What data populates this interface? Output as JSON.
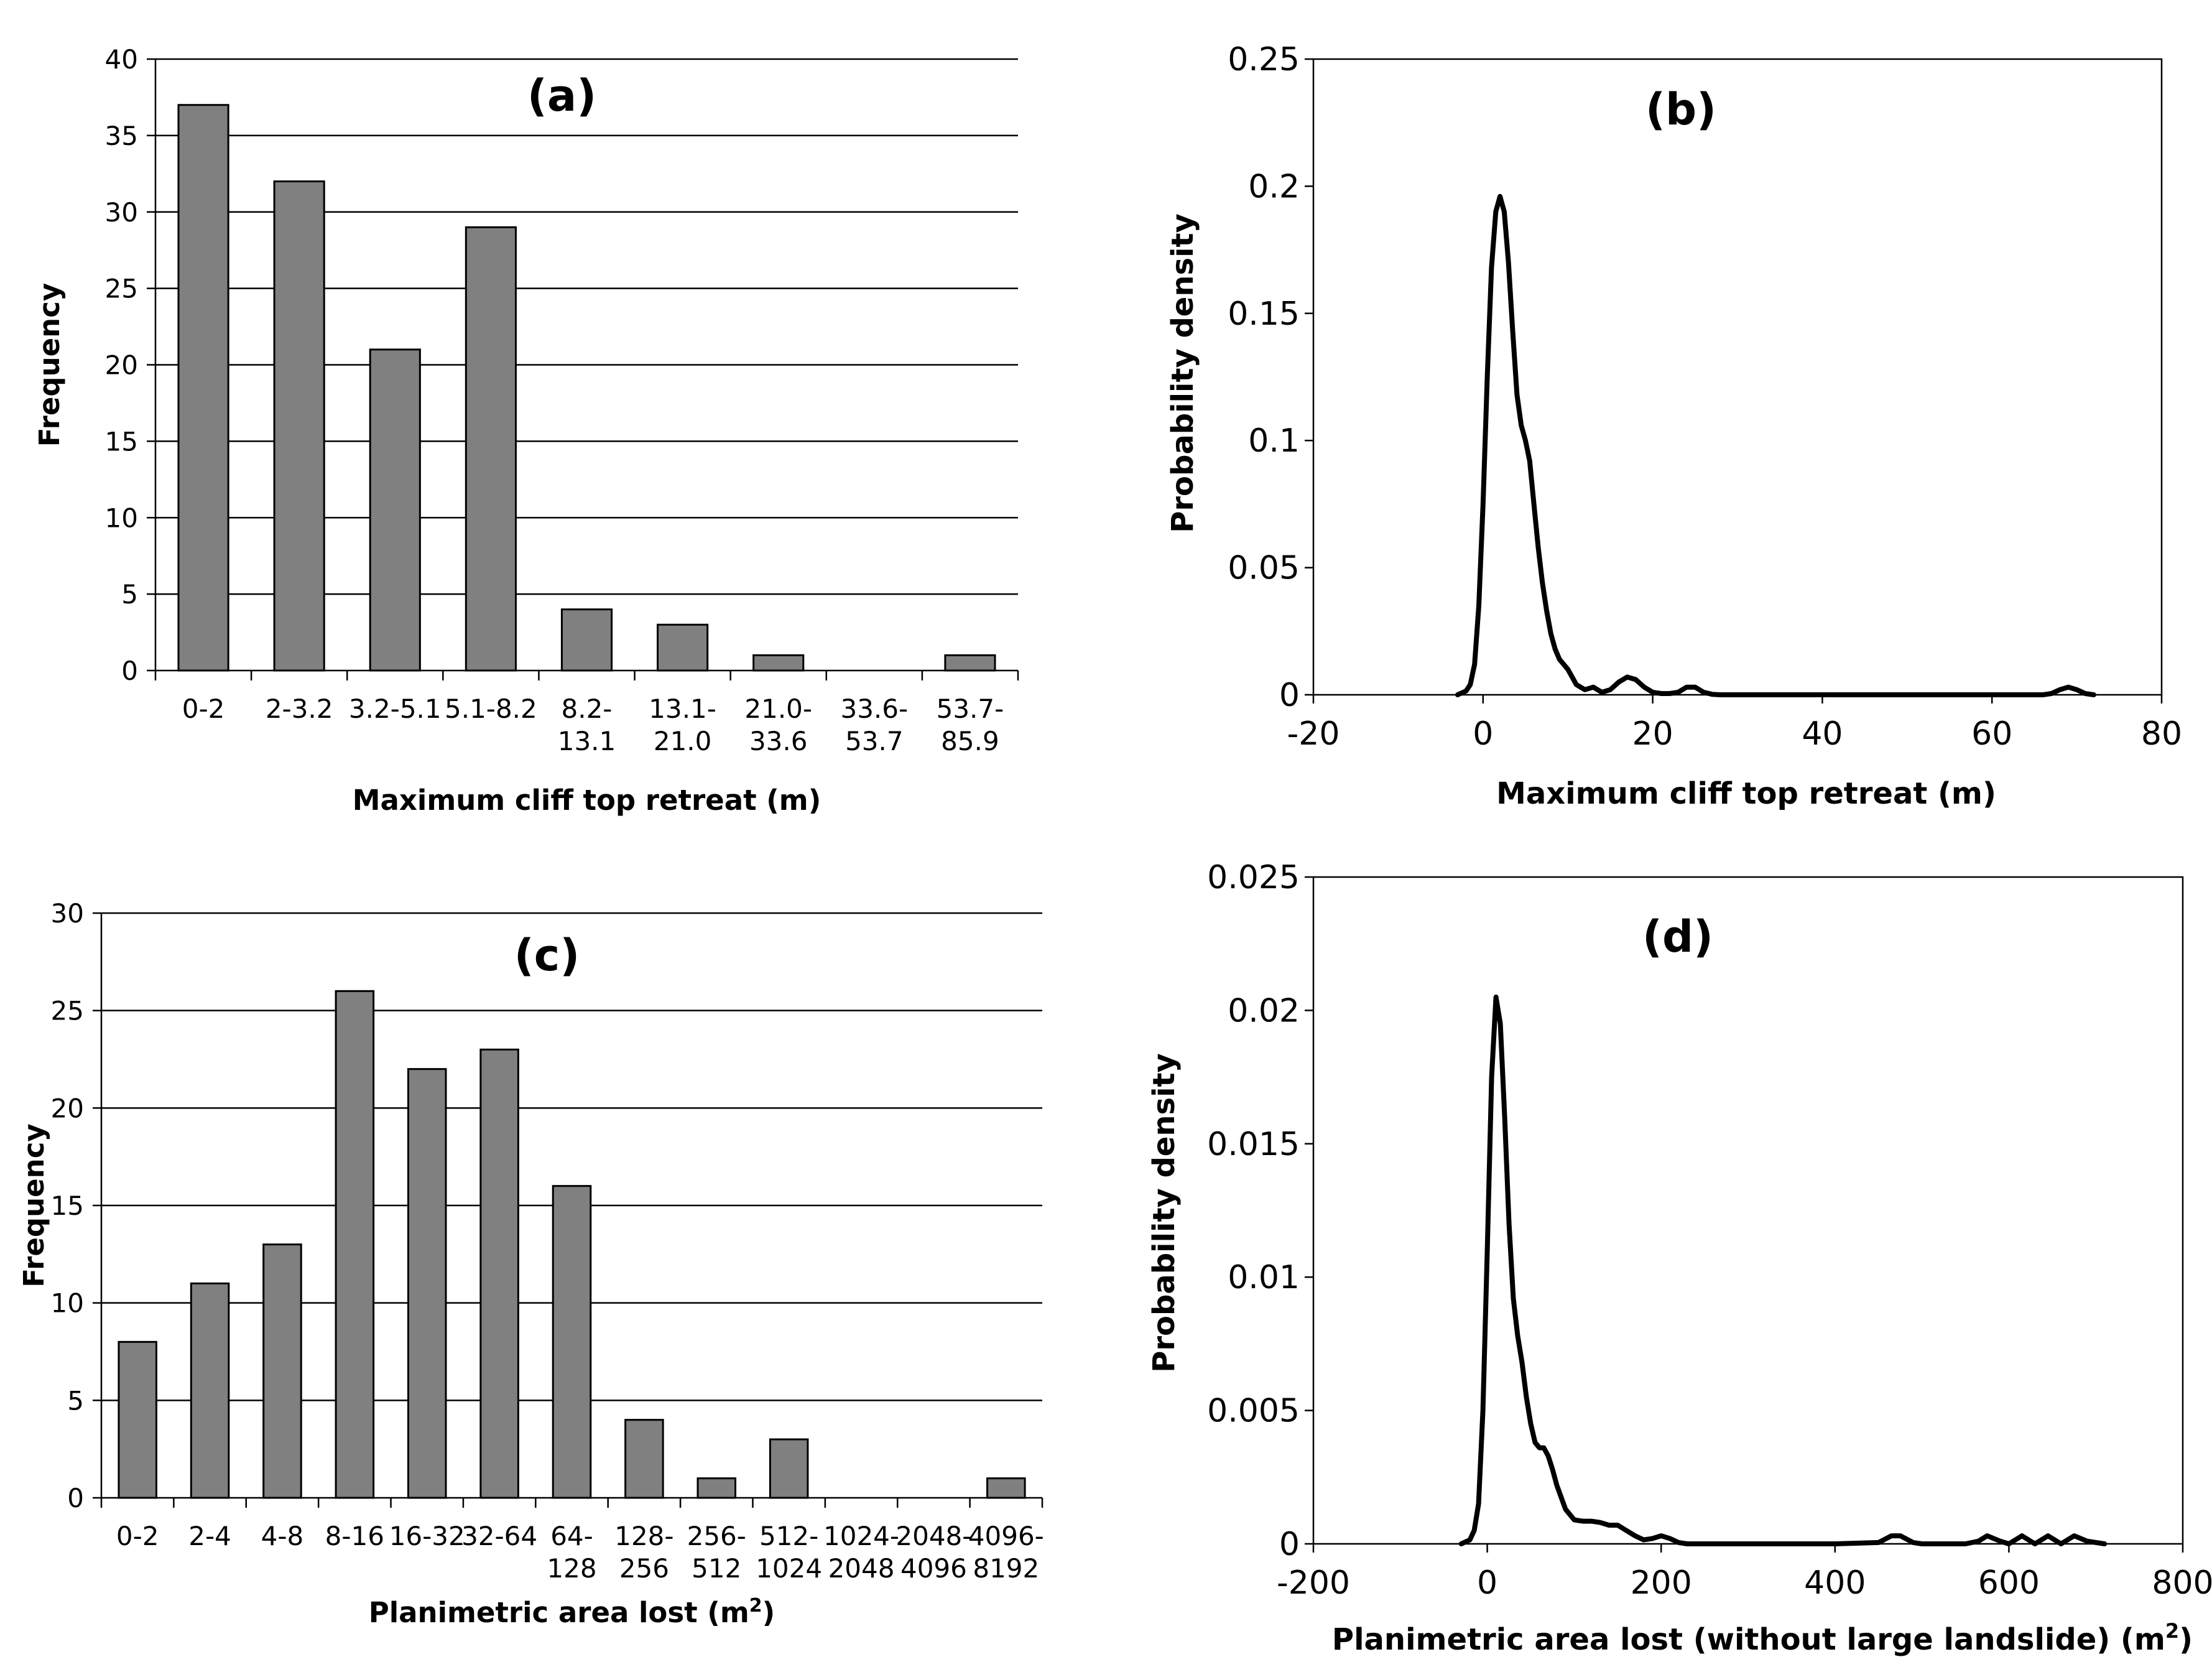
{
  "chart_data": [
    {
      "id": "a",
      "type": "bar",
      "panel_label": "(a)",
      "title": "(a)",
      "xlabel": "Maximum cliff top retreat  (m)",
      "ylabel": "Frequency",
      "categories": [
        [
          "0-2"
        ],
        [
          "2-3.2"
        ],
        [
          "3.2-5.1"
        ],
        [
          "5.1-8.2"
        ],
        [
          "8.2-",
          "13.1"
        ],
        [
          "13.1-",
          "21.0"
        ],
        [
          "21.0-",
          "33.6"
        ],
        [
          "33.6-",
          "53.7"
        ],
        [
          "53.7-",
          "85.9"
        ]
      ],
      "values": [
        37,
        32,
        21,
        29,
        4,
        3,
        1,
        0,
        1
      ],
      "ylim": [
        0,
        40
      ],
      "yticks": [
        0,
        5,
        10,
        15,
        20,
        25,
        30,
        35,
        40
      ],
      "grid": true
    },
    {
      "id": "b",
      "type": "line",
      "panel_label": "(b)",
      "title": "(b)",
      "xlabel": "Maximum cliff top retreat (m)",
      "ylabel": "Probability density",
      "xlim": [
        -20,
        80
      ],
      "ylim": [
        0,
        0.25
      ],
      "xticks": [
        "-20",
        "0",
        "20",
        "40",
        "60",
        "80"
      ],
      "yticks": [
        "0",
        "0.05",
        "0.1",
        "0.15",
        "0.2",
        "0.25"
      ],
      "grid": false,
      "x": [
        -3,
        -2,
        -1.5,
        -1,
        -0.5,
        0,
        0.5,
        1,
        1.5,
        2,
        2.5,
        3,
        3.5,
        4,
        4.5,
        5,
        5.5,
        6,
        6.5,
        7,
        7.5,
        8,
        8.5,
        9,
        9.5,
        10,
        11,
        12,
        13,
        14,
        15,
        16,
        17,
        18,
        19,
        20,
        21,
        22,
        23,
        24,
        25,
        26,
        27,
        28,
        30,
        40,
        50,
        60,
        66,
        67,
        68,
        69,
        70,
        71,
        72
      ],
      "y": [
        0,
        0.0015,
        0.004,
        0.012,
        0.035,
        0.075,
        0.125,
        0.168,
        0.19,
        0.196,
        0.19,
        0.17,
        0.143,
        0.118,
        0.106,
        0.1,
        0.092,
        0.075,
        0.058,
        0.044,
        0.033,
        0.024,
        0.018,
        0.014,
        0.012,
        0.01,
        0.004,
        0.002,
        0.003,
        0.001,
        0.002,
        0.005,
        0.007,
        0.006,
        0.003,
        0.001,
        0.0005,
        0.0005,
        0.001,
        0.003,
        0.003,
        0.001,
        0.0002,
        0,
        0,
        0,
        0,
        0,
        0,
        0.0005,
        0.002,
        0.003,
        0.002,
        0.0005,
        0
      ]
    },
    {
      "id": "c",
      "type": "bar",
      "panel_label": "(c)",
      "title": "(c)",
      "xlabel": "Planimetric area lost (m",
      "xlabel_sup": "2",
      "xlabel_end": ")",
      "ylabel": "Frequency",
      "categories": [
        [
          "0-2"
        ],
        [
          "2-4"
        ],
        [
          "4-8"
        ],
        [
          "8-16"
        ],
        [
          "16-32"
        ],
        [
          "32-64"
        ],
        [
          "64-",
          "128"
        ],
        [
          "128-",
          "256"
        ],
        [
          "256-",
          "512"
        ],
        [
          "512-",
          "1024"
        ],
        [
          "1024-",
          "2048"
        ],
        [
          "2048-",
          "4096"
        ],
        [
          "4096-",
          "8192"
        ]
      ],
      "values": [
        8,
        11,
        13,
        26,
        22,
        23,
        16,
        4,
        1,
        3,
        0,
        0,
        1
      ],
      "ylim": [
        0,
        30
      ],
      "yticks": [
        0,
        5,
        10,
        15,
        20,
        25,
        30
      ],
      "grid": true
    },
    {
      "id": "d",
      "type": "line",
      "panel_label": "(d)",
      "title": "(d)",
      "xlabel": "Planimetric area lost (without large landslide) (m",
      "xlabel_sup": "2",
      "xlabel_end": ")",
      "ylabel": "Probability density",
      "xlim": [
        -200,
        800
      ],
      "ylim": [
        0,
        0.025
      ],
      "xticks": [
        "-200",
        "0",
        "200",
        "400",
        "600",
        "800"
      ],
      "yticks": [
        "0",
        "0.005",
        "0.01",
        "0.015",
        "0.02",
        "0.025"
      ],
      "grid": false,
      "x": [
        -30,
        -20,
        -15,
        -10,
        -5,
        0,
        5,
        10,
        15,
        20,
        25,
        30,
        35,
        40,
        45,
        50,
        55,
        60,
        65,
        70,
        75,
        80,
        90,
        100,
        110,
        120,
        130,
        140,
        150,
        160,
        170,
        180,
        190,
        200,
        210,
        220,
        230,
        240,
        300,
        400,
        450,
        465,
        475,
        490,
        500,
        550,
        565,
        575,
        590,
        600,
        615,
        630,
        645,
        660,
        675,
        690,
        710
      ],
      "y": [
        0,
        0.00015,
        0.0005,
        0.0015,
        0.005,
        0.011,
        0.0175,
        0.0205,
        0.0195,
        0.016,
        0.012,
        0.0092,
        0.0078,
        0.0068,
        0.0055,
        0.0045,
        0.0038,
        0.0036,
        0.0036,
        0.0033,
        0.0028,
        0.0022,
        0.0013,
        0.0009,
        0.00085,
        0.00085,
        0.0008,
        0.0007,
        0.0007,
        0.0005,
        0.0003,
        0.00015,
        0.0002,
        0.0003,
        0.0002,
        5e-05,
        0,
        0,
        0,
        0,
        5e-05,
        0.0003,
        0.0003,
        5e-05,
        0,
        0,
        0.0001,
        0.0003,
        0.0001,
        0,
        0.0003,
        0,
        0.0003,
        0,
        0.0003,
        0.0001,
        0
      ]
    }
  ]
}
